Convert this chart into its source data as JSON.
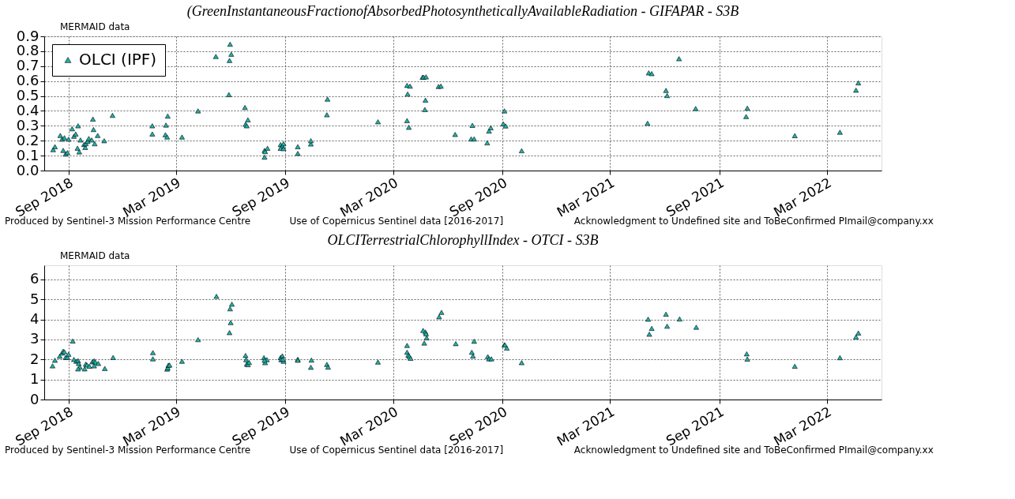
{
  "chart_data": [
    {
      "type": "scatter",
      "title": "(GreenInstantaneousFractionofAbsorbedPhotosyntheticallyAvailableRadiation - GIFAPAR - S3B",
      "annotations": [
        "MERMAID data",
        "Produced by Sentinel-3 Mission Performance Centre",
        "Use of Copernicus Sentinel data [2016-2017]",
        "Acknowledgment to Undefined site and ToBeConfirmed PImail@company.xx"
      ],
      "marker": "triangle",
      "grid": true,
      "legend": "top left",
      "xlim": [
        "2018-07-22",
        "2022-06-01"
      ],
      "ylim": [
        0,
        0.9
      ],
      "xticks": [
        {
          "value": "2018-09-01",
          "label": "Sep 2018"
        },
        {
          "value": "2019-03-01",
          "label": "Mar 2019"
        },
        {
          "value": "2019-09-01",
          "label": "Sep 2019"
        },
        {
          "value": "2020-03-01",
          "label": "Mar 2020"
        },
        {
          "value": "2020-09-01",
          "label": "Sep 2020"
        },
        {
          "value": "2021-03-01",
          "label": "Mar 2021"
        },
        {
          "value": "2021-09-01",
          "label": "Sep 2021"
        },
        {
          "value": "2022-03-01",
          "label": "Mar 2022"
        }
      ],
      "yticks": [
        {
          "value": 0,
          "label": "0.0"
        },
        0.1,
        0.2,
        0.3,
        0.4,
        0.5,
        0.6,
        0.7,
        0.8,
        0.9
      ],
      "series": [
        {
          "name": "OLCI (IPF)",
          "color": "#20b2aa",
          "x": [
            "2018-08-06",
            "2018-08-09",
            "2018-08-18",
            "2018-08-21",
            "2018-08-25",
            "2018-08-23",
            "2018-08-27",
            "2018-08-30",
            "2018-09-01",
            "2018-09-07",
            "2018-09-10",
            "2018-09-13",
            "2018-09-17",
            "2018-09-16",
            "2018-09-19",
            "2018-09-21",
            "2018-09-27",
            "2018-09-29",
            "2018-09-30",
            "2018-10-03",
            "2018-10-05",
            "2018-10-10",
            "2018-10-12",
            "2018-10-13",
            "2018-10-15",
            "2018-10-20",
            "2018-10-31",
            "2018-11-14",
            "2019-01-20",
            "2019-01-20",
            "2019-02-12",
            "2019-02-15",
            "2019-02-11",
            "2019-02-14",
            "2019-03-11",
            "2019-04-07",
            "2019-05-07",
            "2019-05-31",
            "2019-06-02",
            "2019-05-30",
            "2019-05-29",
            "2019-06-25",
            "2019-06-30",
            "2019-06-26",
            "2019-06-28",
            "2019-07-28",
            "2019-07-29",
            "2019-08-02",
            "2019-07-28",
            "2019-08-24",
            "2019-08-25",
            "2019-08-27",
            "2019-08-29",
            "2019-08-24",
            "2019-08-29",
            "2019-09-22",
            "2019-09-22",
            "2019-10-14",
            "2019-10-14",
            "2019-11-10",
            "2019-11-11",
            "2020-02-04",
            "2020-03-24",
            "2020-03-27",
            "2020-03-24",
            "2020-03-29",
            "2020-03-25",
            "2020-04-19",
            "2020-04-21",
            "2020-04-25",
            "2020-04-24",
            "2020-04-23",
            "2020-05-16",
            "2020-05-20",
            "2020-06-13",
            "2020-07-12",
            "2020-07-10",
            "2020-07-15",
            "2020-08-06",
            "2020-08-09",
            "2020-08-12",
            "2020-09-04",
            "2020-09-02",
            "2020-09-06",
            "2020-10-03",
            "2021-05-03",
            "2021-05-05",
            "2021-05-10",
            "2021-06-03",
            "2021-06-05",
            "2021-06-25",
            "2021-07-23",
            "2021-10-18",
            "2021-10-16",
            "2022-01-06",
            "2022-03-23",
            "2022-04-19",
            "2022-04-23"
          ],
          "values": [
            0.14,
            0.16,
            0.235,
            0.21,
            0.22,
            0.135,
            0.11,
            0.12,
            0.21,
            0.28,
            0.23,
            0.245,
            0.3,
            0.15,
            0.125,
            0.205,
            0.175,
            0.155,
            0.18,
            0.195,
            0.215,
            0.205,
            0.345,
            0.275,
            0.18,
            0.235,
            0.2,
            0.37,
            0.3,
            0.245,
            0.305,
            0.365,
            0.24,
            0.225,
            0.225,
            0.4,
            0.765,
            0.847,
            0.78,
            0.738,
            0.509,
            0.423,
            0.34,
            0.31,
            0.3,
            0.135,
            0.127,
            0.149,
            0.09,
            0.174,
            0.153,
            0.164,
            0.18,
            0.149,
            0.147,
            0.16,
            0.115,
            0.178,
            0.2,
            0.374,
            0.479,
            0.327,
            0.335,
            0.29,
            0.571,
            0.566,
            0.513,
            0.626,
            0.626,
            0.628,
            0.472,
            0.409,
            0.564,
            0.566,
            0.242,
            0.303,
            0.212,
            0.212,
            0.186,
            0.265,
            0.287,
            0.4,
            0.313,
            0.299,
            0.133,
            0.317,
            0.655,
            0.65,
            0.537,
            0.503,
            0.75,
            0.416,
            0.418,
            0.362,
            0.234,
            0.257,
            0.539,
            0.588
          ]
        }
      ]
    },
    {
      "type": "scatter",
      "title": "OLCITerrestrialChlorophyllIndex - OTCI - S3B",
      "annotations": [
        "MERMAID data",
        "Produced by Sentinel-3 Mission Performance Centre",
        "Use of Copernicus Sentinel data [2016-2017]",
        "Acknowledgment to Undefined site and ToBeConfirmed PImail@company.xx"
      ],
      "marker": "triangle",
      "grid": true,
      "legend": "top left",
      "xlim": [
        "2018-07-22",
        "2022-06-01"
      ],
      "ylim": [
        0,
        6.7
      ],
      "xticks": [
        {
          "value": "2018-09-01",
          "label": "Sep 2018"
        },
        {
          "value": "2019-03-01",
          "label": "Mar 2019"
        },
        {
          "value": "2019-09-01",
          "label": "Sep 2019"
        },
        {
          "value": "2020-03-01",
          "label": "Mar 2020"
        },
        {
          "value": "2020-09-01",
          "label": "Sep 2020"
        },
        {
          "value": "2021-03-01",
          "label": "Mar 2021"
        },
        {
          "value": "2021-09-01",
          "label": "Sep 2021"
        },
        {
          "value": "2022-03-01",
          "label": "Mar 2022"
        }
      ],
      "yticks": [
        0,
        1,
        2,
        3,
        4,
        5,
        6
      ],
      "series": [
        {
          "name": "OLCI (IPF)",
          "color": "#20b2aa",
          "x": [
            "2018-08-05",
            "2018-08-09",
            "2018-08-17",
            "2018-08-21",
            "2018-08-23",
            "2018-08-25",
            "2018-08-27",
            "2018-08-30",
            "2018-09-01",
            "2018-09-08",
            "2018-09-10",
            "2018-09-14",
            "2018-09-17",
            "2018-09-18",
            "2018-09-20",
            "2018-09-17",
            "2018-09-28",
            "2018-09-30",
            "2018-10-02",
            "2018-10-06",
            "2018-10-11",
            "2018-10-14",
            "2018-10-16",
            "2018-10-14",
            "2018-10-21",
            "2018-11-01",
            "2018-11-15",
            "2019-01-21",
            "2019-01-21",
            "2019-02-14",
            "2019-02-15",
            "2019-02-16",
            "2019-02-18",
            "2019-03-11",
            "2019-04-07",
            "2019-05-08",
            "2019-05-31",
            "2019-06-03",
            "2019-06-01",
            "2019-05-30",
            "2019-06-26",
            "2019-06-27",
            "2019-06-28",
            "2019-06-30",
            "2019-07-02",
            "2019-07-27",
            "2019-07-29",
            "2019-08-01",
            "2019-07-28",
            "2019-08-24",
            "2019-08-27",
            "2019-08-25",
            "2019-08-29",
            "2019-08-28",
            "2019-09-22",
            "2019-09-22",
            "2019-10-15",
            "2019-10-14",
            "2019-11-10",
            "2019-11-12",
            "2020-02-04",
            "2020-03-24",
            "2020-03-24",
            "2020-03-26",
            "2020-03-28",
            "2020-03-30",
            "2020-04-20",
            "2020-04-24",
            "2020-04-25",
            "2020-04-26",
            "2020-04-22",
            "2020-05-17",
            "2020-05-21",
            "2020-06-14",
            "2020-07-15",
            "2020-07-11",
            "2020-07-13",
            "2020-08-07",
            "2020-08-09",
            "2020-08-13",
            "2020-09-04",
            "2020-09-05",
            "2020-09-08",
            "2020-10-03",
            "2021-05-04",
            "2021-05-06",
            "2021-05-10",
            "2021-06-03",
            "2021-06-05",
            "2021-06-26",
            "2021-07-24",
            "2021-10-17",
            "2021-10-18",
            "2022-01-06",
            "2022-03-23",
            "2022-04-19",
            "2022-04-23"
          ],
          "values": [
            1.68,
            1.96,
            2.16,
            2.32,
            2.41,
            2.38,
            2.1,
            2.1,
            2.26,
            2.92,
            2.0,
            1.91,
            1.94,
            1.8,
            1.62,
            1.53,
            1.53,
            1.77,
            1.72,
            1.66,
            1.88,
            1.93,
            1.87,
            1.68,
            1.8,
            1.55,
            2.1,
            2.34,
            2.03,
            1.52,
            1.59,
            1.71,
            1.72,
            1.91,
            2.99,
            5.15,
            4.53,
            4.76,
            3.84,
            3.34,
            2.2,
            1.99,
            1.77,
            1.74,
            1.85,
            2.09,
            1.84,
            1.99,
            1.96,
            2.1,
            2.18,
            1.99,
            1.91,
            2.01,
            2.01,
            1.96,
            1.97,
            1.61,
            1.75,
            1.62,
            1.87,
            2.7,
            2.36,
            2.22,
            2.15,
            2.06,
            3.45,
            3.37,
            3.28,
            3.08,
            2.82,
            4.13,
            4.35,
            2.79,
            2.91,
            2.36,
            2.17,
            2.14,
            2.03,
            2.03,
            2.73,
            2.72,
            2.57,
            1.84,
            4.01,
            3.26,
            3.55,
            4.26,
            3.66,
            4.02,
            3.61,
            2.28,
            2.02,
            1.66,
            2.09,
            3.12,
            3.32
          ]
        }
      ]
    }
  ]
}
